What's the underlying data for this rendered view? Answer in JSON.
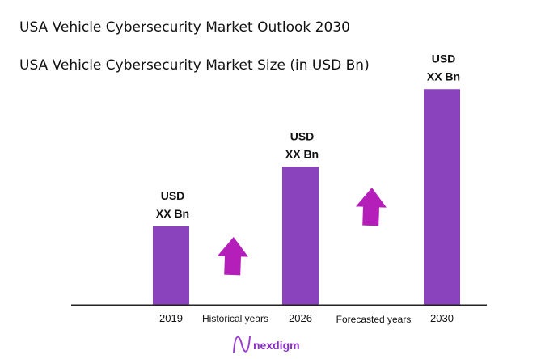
{
  "title": "USA Vehicle Cybersecurity Market Outlook 2030",
  "subtitle": "USA Vehicle Cybersecurity Market Size (in USD Bn)",
  "brand": "nexdigm",
  "chart_data": {
    "type": "bar",
    "categories": [
      "2019",
      "2026",
      "2030"
    ],
    "values": [
      1.0,
      1.76,
      2.75
    ],
    "value_note_labels": [
      "USD XX Bn",
      "USD XX Bn",
      "USD XX Bn"
    ],
    "data_labels": [
      {
        "line1": "USD",
        "line2": "XX Bn"
      },
      {
        "line1": "USD",
        "line2": "XX Bn"
      },
      {
        "line1": "USD",
        "line2": "XX Bn"
      }
    ],
    "period_labels": [
      "Historical years",
      "Forecasted years"
    ],
    "grid": false,
    "bar_color": "#8a43bc",
    "arrow_color": "#b41fb9"
  }
}
